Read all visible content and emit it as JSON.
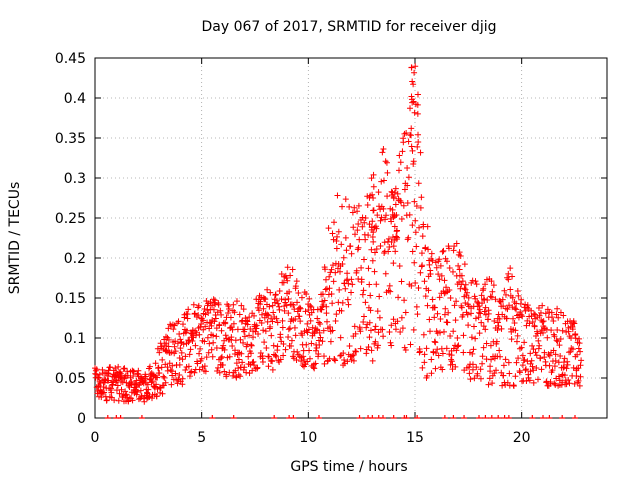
{
  "chart_data": {
    "type": "scatter",
    "title": "Day 067 of 2017, SRMTID for receiver djig",
    "xlabel": "GPS time / hours",
    "ylabel": "SRMTID / TECUs",
    "xlim": [
      0,
      24
    ],
    "ylim": [
      0,
      0.45
    ],
    "x_ticks": [
      "0",
      "5",
      "10",
      "15",
      "20"
    ],
    "y_ticks": [
      "0",
      "0.05",
      "0.1",
      "0.15",
      "0.2",
      "0.25",
      "0.3",
      "0.35",
      "0.4",
      "0.45"
    ],
    "grid": true,
    "marker": "plus",
    "series": [
      {
        "name": "SRMTID",
        "color": "#ff0000",
        "envelope": {
          "x": [
            0.0,
            0.5,
            1.0,
            1.5,
            2.0,
            2.5,
            3.0,
            3.5,
            4.0,
            4.5,
            5.0,
            5.5,
            6.0,
            6.5,
            7.0,
            7.5,
            8.0,
            8.5,
            9.0,
            9.5,
            10.0,
            10.5,
            11.0,
            11.5,
            12.0,
            12.5,
            13.0,
            13.5,
            14.0,
            14.5,
            15.0,
            15.5,
            16.0,
            16.5,
            17.0,
            17.5,
            18.0,
            18.5,
            19.0,
            19.5,
            20.0,
            20.5,
            21.0,
            21.5,
            22.0,
            22.5,
            22.8
          ],
          "low": [
            0.03,
            0.02,
            0.02,
            0.02,
            0.02,
            0.02,
            0.025,
            0.04,
            0.04,
            0.05,
            0.06,
            0.05,
            0.05,
            0.05,
            0.05,
            0.06,
            0.06,
            0.06,
            0.07,
            0.07,
            0.06,
            0.06,
            0.07,
            0.06,
            0.06,
            0.06,
            0.07,
            0.08,
            0.08,
            0.08,
            0.09,
            0.05,
            0.05,
            0.06,
            0.06,
            0.05,
            0.04,
            0.04,
            0.04,
            0.04,
            0.04,
            0.04,
            0.04,
            0.04,
            0.04,
            0.04,
            0.04
          ],
          "high": [
            0.07,
            0.06,
            0.07,
            0.06,
            0.06,
            0.06,
            0.09,
            0.12,
            0.13,
            0.14,
            0.15,
            0.15,
            0.14,
            0.15,
            0.14,
            0.15,
            0.17,
            0.16,
            0.2,
            0.18,
            0.15,
            0.14,
            0.25,
            0.29,
            0.26,
            0.27,
            0.3,
            0.35,
            0.3,
            0.36,
            0.44,
            0.25,
            0.2,
            0.22,
            0.22,
            0.2,
            0.16,
            0.18,
            0.16,
            0.19,
            0.15,
            0.14,
            0.15,
            0.14,
            0.13,
            0.12,
            0.1
          ]
        },
        "peak_hours": [
          13.0,
          14.0,
          15.0
        ],
        "zero_marks_hours": [
          0.6,
          1.0,
          1.2,
          2.2,
          5.5,
          6.5,
          8.4,
          9.1,
          9.3,
          10.5,
          12.4,
          12.8,
          13.0,
          13.3,
          13.5,
          14.0,
          14.5,
          14.6,
          15.1,
          16.4,
          16.8,
          17.3,
          18.0,
          18.3,
          18.6,
          18.9,
          19.2,
          19.4,
          20.5,
          21.0,
          21.3,
          21.9,
          22.5
        ]
      }
    ]
  }
}
